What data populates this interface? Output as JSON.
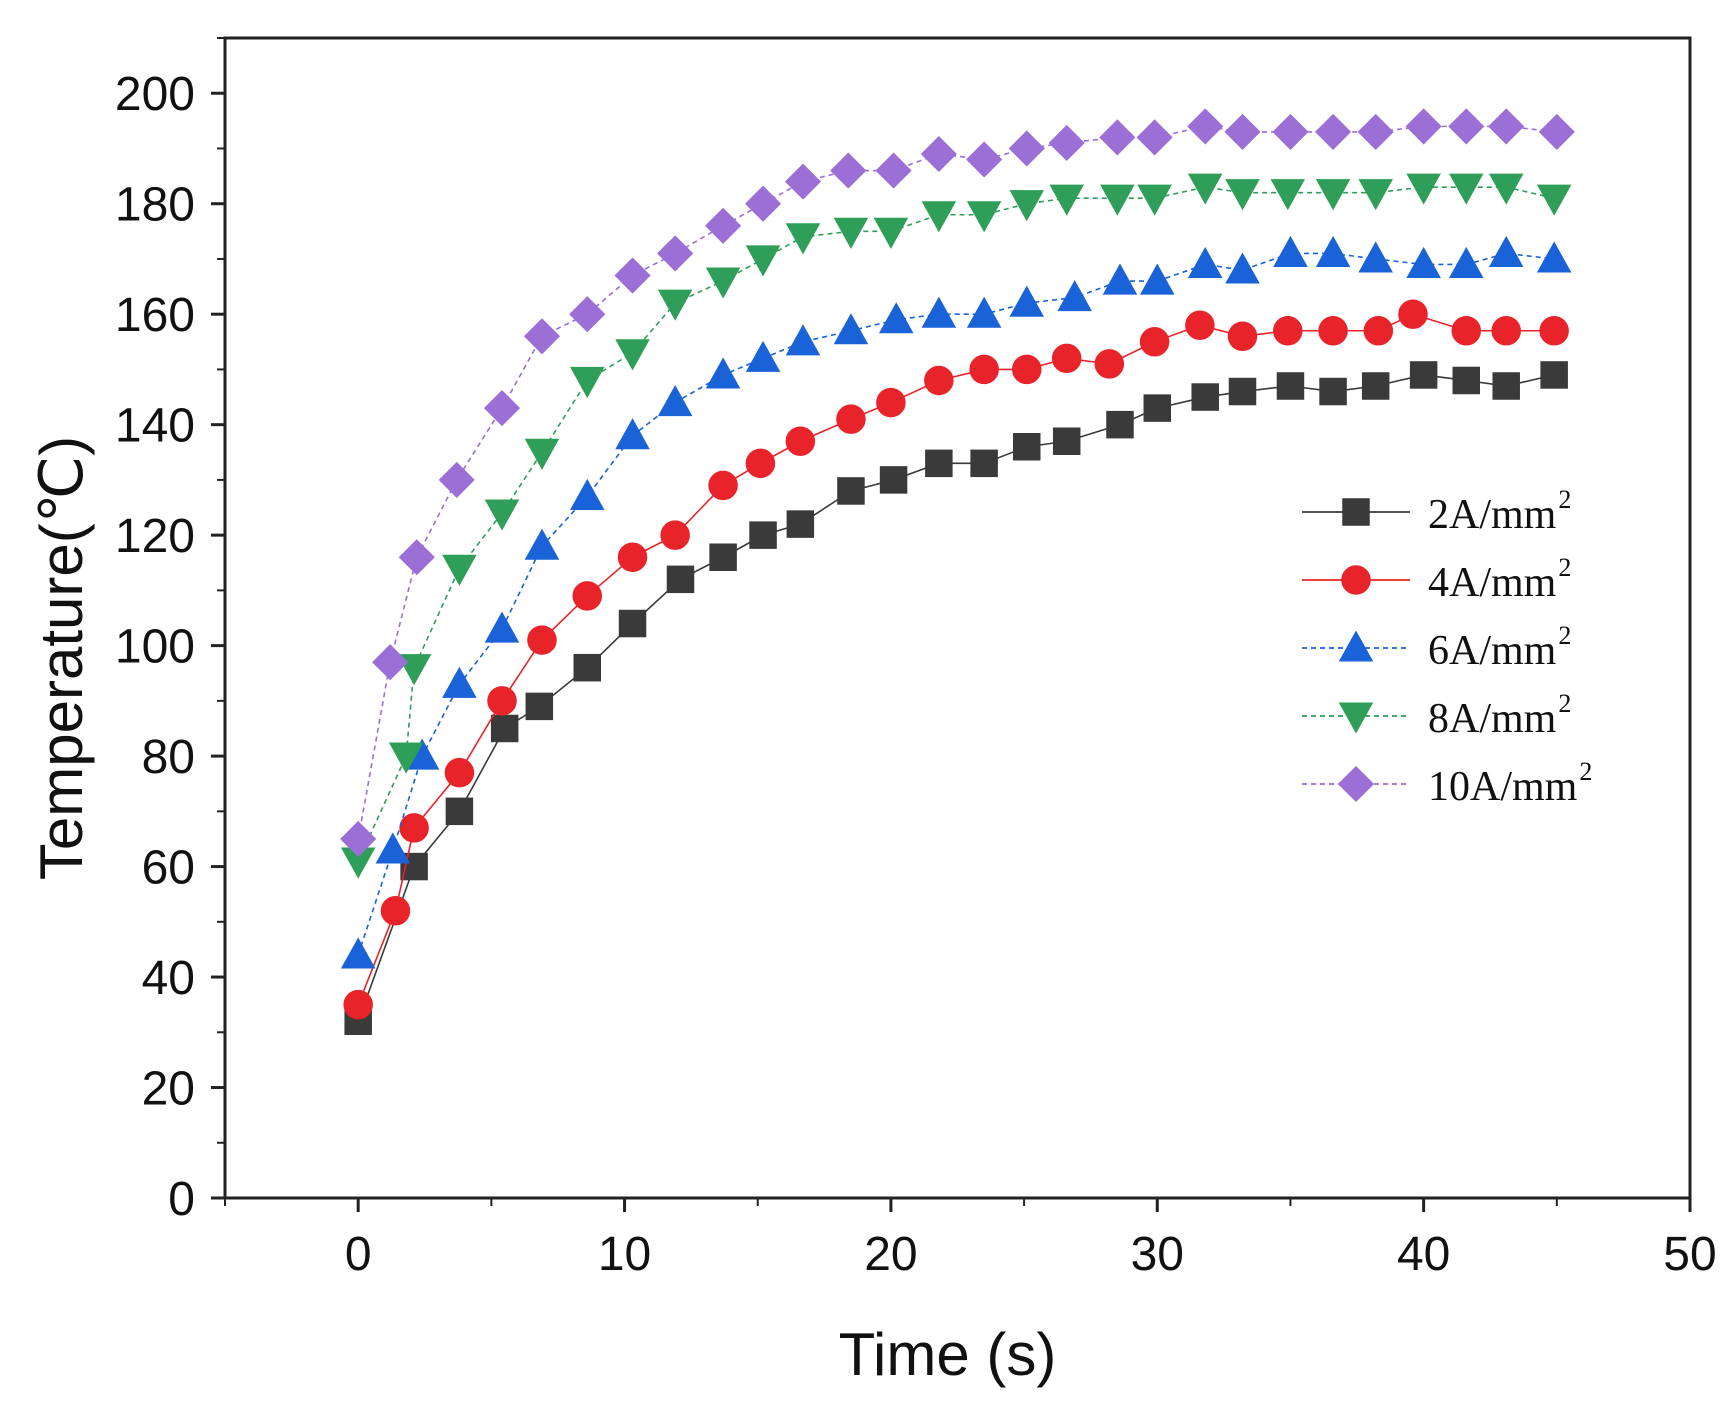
{
  "chart_data": {
    "type": "line",
    "title": "",
    "xlabel": "Time (s)",
    "ylabel": "Temperature(℃)",
    "xlim": [
      -5,
      50
    ],
    "ylim": [
      0,
      210
    ],
    "xticks": [
      0,
      10,
      20,
      30,
      40,
      50
    ],
    "yticks": [
      0,
      20,
      40,
      60,
      80,
      100,
      120,
      140,
      160,
      180,
      200
    ],
    "xtick_labels": [
      "0",
      "10",
      "20",
      "30",
      "40",
      "50"
    ],
    "ytick_labels": [
      "0",
      "20",
      "40",
      "60",
      "80",
      "100",
      "120",
      "140",
      "160",
      "180",
      "200"
    ],
    "grid": false,
    "legend_position": "right-middle",
    "series": [
      {
        "name": "2A/mm2",
        "label_main": "2A/mm",
        "label_sup": "2",
        "marker": "square",
        "color": "#3a3a3a",
        "x": [
          0,
          2.1,
          3.8,
          5.5,
          6.8,
          8.6,
          10.3,
          12.1,
          13.7,
          15.2,
          16.6,
          18.5,
          20.1,
          21.8,
          23.5,
          25.1,
          26.6,
          28.6,
          30.0,
          31.8,
          33.2,
          35.0,
          36.6,
          38.2,
          40.0,
          41.6,
          43.1,
          44.9
        ],
        "y": [
          32,
          60,
          70,
          85,
          89,
          96,
          104,
          112,
          116,
          120,
          122,
          128,
          130,
          133,
          133,
          136,
          137,
          140,
          143,
          145,
          146,
          147,
          146,
          147,
          149,
          148,
          147,
          149
        ]
      },
      {
        "name": "4A/mm2",
        "label_main": "4A/mm",
        "label_sup": "2",
        "marker": "circle",
        "color": "#e8242a",
        "x": [
          0,
          1.4,
          2.1,
          3.8,
          5.4,
          6.9,
          8.6,
          10.3,
          11.9,
          13.7,
          15.1,
          16.6,
          18.5,
          20.0,
          21.8,
          23.5,
          25.1,
          26.6,
          28.2,
          29.9,
          31.6,
          33.2,
          34.9,
          36.6,
          38.3,
          39.6,
          41.6,
          43.1,
          44.9
        ],
        "y": [
          35,
          52,
          67,
          77,
          90,
          101,
          109,
          116,
          120,
          129,
          133,
          137,
          141,
          144,
          148,
          150,
          150,
          152,
          151,
          155,
          158,
          156,
          157,
          157,
          157,
          160,
          157,
          157,
          157
        ]
      },
      {
        "name": "6A/mm2",
        "label_main": "6A/mm",
        "label_sup": "2",
        "marker": "triangle-up",
        "color": "#1a62d8",
        "x": [
          0,
          1.3,
          2.4,
          3.8,
          5.4,
          6.9,
          8.6,
          10.3,
          11.9,
          13.7,
          15.2,
          16.7,
          18.5,
          20.2,
          21.8,
          23.5,
          25.1,
          26.9,
          28.6,
          30.0,
          31.8,
          33.2,
          35.0,
          36.6,
          38.2,
          40.0,
          41.6,
          43.1,
          44.9
        ],
        "y": [
          44,
          63,
          80,
          93,
          103,
          118,
          127,
          138,
          144,
          149,
          152,
          155,
          157,
          159,
          160,
          160,
          162,
          163,
          166,
          166,
          169,
          168,
          171,
          171,
          170,
          169,
          169,
          171,
          170
        ]
      },
      {
        "name": "8A/mm2",
        "label_main": "8A/mm",
        "label_sup": "2",
        "marker": "triangle-down",
        "color": "#2f9e58",
        "x": [
          0,
          1.8,
          2.1,
          3.8,
          5.4,
          6.9,
          8.6,
          10.3,
          11.9,
          13.7,
          15.2,
          16.7,
          18.5,
          20.0,
          21.8,
          23.5,
          25.1,
          26.6,
          28.5,
          29.9,
          31.8,
          33.2,
          34.9,
          36.6,
          38.2,
          40.0,
          41.6,
          43.1,
          44.9
        ],
        "y": [
          61,
          80,
          96,
          114,
          124,
          135,
          148,
          153,
          162,
          166,
          170,
          174,
          175,
          175,
          178,
          178,
          180,
          181,
          181,
          181,
          183,
          182,
          182,
          182,
          182,
          183,
          183,
          183,
          181
        ]
      },
      {
        "name": "10A/mm2",
        "label_main": "10A/mm",
        "label_sup": "2",
        "marker": "diamond",
        "color": "#9b6fd6",
        "x": [
          0,
          1.2,
          2.2,
          3.7,
          5.4,
          6.9,
          8.6,
          10.3,
          11.9,
          13.7,
          15.2,
          16.7,
          18.4,
          20.1,
          21.8,
          23.5,
          25.1,
          26.6,
          28.5,
          29.9,
          31.8,
          33.2,
          35.0,
          36.6,
          38.2,
          40.0,
          41.6,
          43.1,
          45.0
        ],
        "y": [
          65,
          97,
          116,
          130,
          143,
          156,
          160,
          167,
          171,
          176,
          180,
          184,
          186,
          186,
          189,
          188,
          190,
          191,
          192,
          192,
          194,
          193,
          193,
          193,
          193,
          194,
          194,
          194,
          193
        ]
      }
    ]
  }
}
